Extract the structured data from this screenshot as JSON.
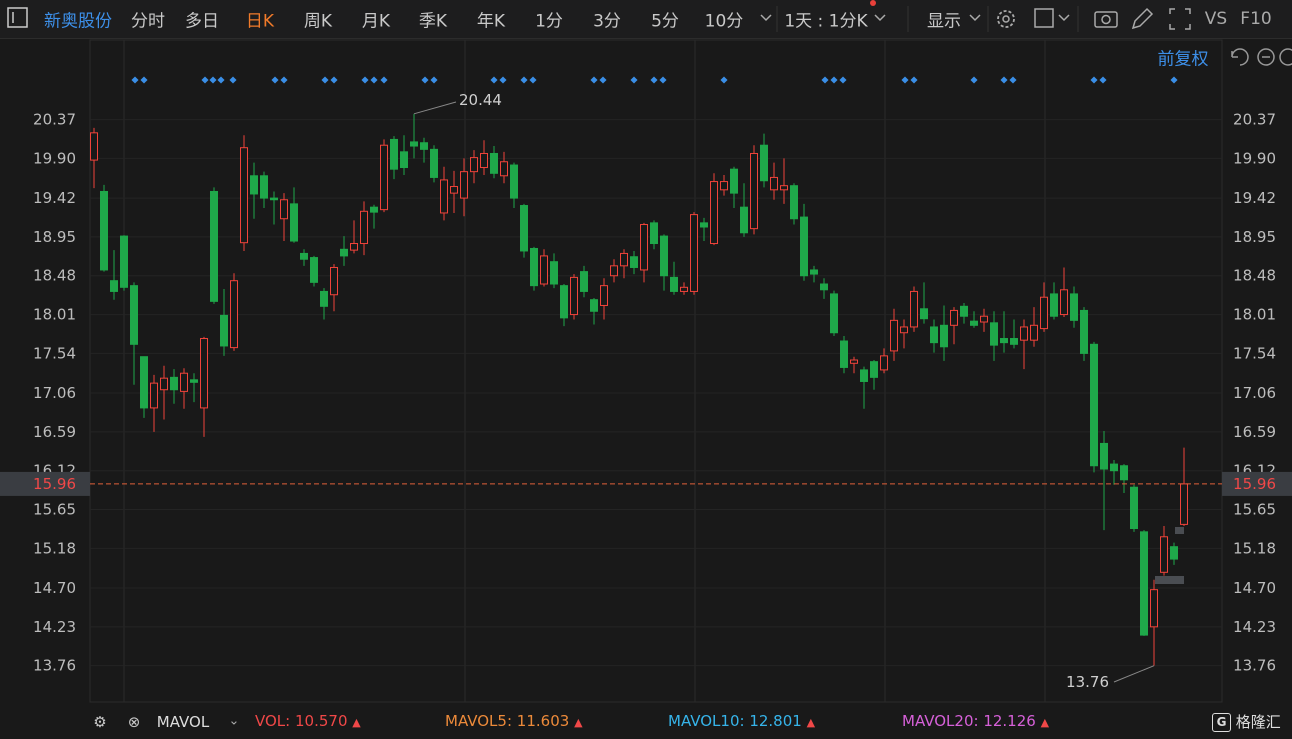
{
  "toolbar": {
    "stock": "新奥股份",
    "periods": [
      "分时",
      "多日",
      "日K",
      "周K",
      "月K",
      "季K",
      "年K",
      "1分",
      "3分",
      "5分",
      "10分"
    ],
    "multi_period": "1天 : 1分K",
    "display": "显示",
    "vs": "VS",
    "f10": "F10"
  },
  "chart_data": {
    "type": "candlestick",
    "adjust_mode": "前复权",
    "up_color": "#f0433a",
    "down_color": "#1fa84a",
    "grid": true,
    "ylim": [
      13.32,
      20.91
    ],
    "yticks": [
      20.37,
      {
        "value": 19.9,
        "label": "19.90"
      },
      19.42,
      18.95,
      18.48,
      18.01,
      17.54,
      17.06,
      16.59,
      16.12,
      15.65,
      15.18,
      {
        "value": 14.7,
        "label": "14.70"
      },
      14.23,
      13.76
    ],
    "current_price": 15.96,
    "max_label": 20.44,
    "min_label": 13.76,
    "open": [
      19.88,
      19.5,
      18.42,
      18.96,
      18.36,
      17.5,
      16.88,
      17.1,
      17.25,
      17.08,
      17.22,
      16.88,
      19.5,
      18.0,
      17.61,
      18.88,
      19.69,
      19.69,
      19.42,
      19.17,
      19.35,
      18.75,
      18.7,
      18.29,
      18.25,
      18.8,
      18.79,
      18.87,
      19.31,
      19.28,
      20.13,
      19.98,
      20.1,
      20.09,
      20.01,
      19.24,
      19.48,
      19.42,
      19.74,
      19.79,
      19.96,
      19.69,
      19.82,
      19.33,
      18.81,
      18.38,
      18.65,
      18.36,
      18.01,
      18.53,
      18.19,
      18.12,
      18.48,
      18.6,
      18.71,
      18.55,
      19.12,
      18.96,
      18.46,
      18.29,
      18.29,
      19.12,
      18.87,
      19.52,
      19.77,
      19.31,
      19.05,
      20.06,
      19.52,
      19.52,
      19.57,
      19.19,
      18.55,
      18.38,
      18.26,
      17.69,
      17.42,
      17.34,
      17.44,
      17.34,
      17.57,
      17.79,
      17.86,
      18.08,
      17.86,
      17.88,
      17.88,
      18.11,
      17.93,
      17.92,
      17.91,
      17.72,
      17.72,
      17.7,
      17.7,
      17.84,
      18.26,
      18.01,
      18.26,
      18.06,
      17.65,
      16.45,
      16.2,
      16.18,
      15.92,
      15.38,
      14.23,
      14.89,
      15.2,
      15.47
    ],
    "high": [
      20.27,
      19.58,
      18.79,
      18.97,
      18.4,
      17.5,
      17.28,
      17.39,
      17.35,
      17.36,
      17.3,
      17.74,
      19.55,
      18.32,
      18.51,
      20.18,
      19.85,
      19.74,
      19.5,
      19.48,
      19.55,
      18.8,
      18.72,
      18.33,
      18.62,
      18.96,
      19.15,
      19.38,
      19.34,
      20.13,
      20.17,
      20.18,
      20.44,
      20.15,
      20.06,
      19.8,
      19.75,
      19.9,
      20.0,
      20.12,
      20.05,
      19.98,
      19.85,
      19.35,
      18.83,
      18.8,
      18.75,
      18.38,
      18.5,
      18.6,
      18.21,
      18.45,
      18.68,
      18.8,
      18.78,
      19.12,
      19.15,
      18.98,
      18.65,
      18.4,
      19.25,
      19.18,
      19.72,
      19.7,
      19.8,
      19.6,
      20.06,
      20.2,
      19.85,
      19.9,
      19.6,
      19.35,
      18.6,
      18.45,
      18.3,
      17.75,
      17.5,
      17.38,
      17.46,
      17.6,
      18.08,
      17.95,
      18.35,
      18.4,
      17.95,
      18.12,
      18.1,
      18.15,
      18.05,
      18.08,
      18.05,
      18.05,
      17.95,
      17.95,
      18.1,
      18.4,
      18.4,
      18.58,
      18.35,
      18.1,
      17.68,
      16.6,
      16.25,
      16.2,
      15.95,
      15.4,
      14.8,
      15.45,
      15.25,
      16.4
    ],
    "low": [
      19.54,
      18.53,
      18.19,
      18.3,
      17.16,
      16.76,
      16.59,
      16.74,
      16.93,
      16.87,
      16.95,
      16.53,
      18.14,
      17.51,
      17.57,
      18.78,
      19.17,
      19.3,
      19.1,
      18.9,
      18.88,
      18.6,
      18.35,
      17.95,
      18.05,
      18.6,
      18.75,
      18.73,
      19.05,
      19.25,
      19.65,
      19.7,
      19.9,
      19.85,
      19.61,
      19.15,
      19.24,
      19.2,
      19.6,
      19.7,
      19.66,
      19.6,
      19.3,
      18.7,
      18.3,
      18.35,
      18.33,
      17.87,
      17.95,
      18.22,
      17.89,
      17.95,
      18.4,
      18.45,
      18.5,
      18.4,
      18.8,
      18.3,
      18.25,
      18.25,
      18.25,
      18.9,
      18.85,
      19.45,
      19.3,
      18.95,
      18.98,
      19.55,
      19.4,
      19.35,
      19.1,
      18.42,
      18.4,
      18.2,
      17.75,
      17.3,
      17.3,
      16.87,
      17.1,
      17.3,
      17.45,
      17.6,
      17.8,
      17.9,
      17.55,
      17.45,
      17.65,
      17.9,
      17.85,
      17.8,
      17.45,
      17.55,
      17.6,
      17.35,
      17.62,
      17.8,
      17.95,
      17.98,
      17.85,
      17.45,
      16.1,
      15.4,
      15.95,
      15.85,
      15.38,
      14.12,
      13.76,
      14.85,
      14.98,
      15.45
    ],
    "close": [
      20.21,
      18.55,
      18.29,
      18.34,
      17.65,
      16.88,
      17.18,
      17.24,
      17.1,
      17.3,
      17.19,
      17.72,
      18.17,
      17.63,
      18.42,
      20.03,
      19.47,
      19.42,
      19.4,
      19.4,
      18.9,
      18.68,
      18.4,
      18.11,
      18.58,
      18.72,
      18.87,
      19.26,
      19.25,
      20.06,
      19.77,
      19.79,
      20.05,
      20.01,
      19.67,
      19.64,
      19.56,
      19.74,
      19.91,
      19.96,
      19.72,
      19.86,
      19.42,
      18.78,
      18.36,
      18.72,
      18.38,
      17.97,
      18.46,
      18.29,
      18.05,
      18.36,
      18.6,
      18.75,
      18.58,
      19.1,
      18.87,
      18.48,
      18.29,
      18.34,
      19.22,
      19.07,
      19.62,
      19.62,
      19.48,
      19.0,
      19.96,
      19.63,
      19.67,
      19.57,
      19.17,
      18.48,
      18.5,
      18.31,
      17.79,
      17.37,
      17.46,
      17.2,
      17.25,
      17.51,
      17.94,
      17.86,
      18.29,
      17.96,
      17.67,
      17.62,
      18.06,
      17.99,
      17.88,
      17.99,
      17.64,
      17.67,
      17.65,
      17.86,
      17.88,
      18.22,
      17.99,
      18.31,
      17.94,
      17.54,
      16.18,
      16.14,
      16.12,
      16.01,
      15.42,
      14.13,
      14.68,
      15.32,
      15.05,
      15.96
    ]
  },
  "indicator_bar": {
    "indicator": "MAVOL",
    "items": [
      {
        "label": "VOL:",
        "value": "10.570"
      },
      {
        "label": "MAVOL5:",
        "value": "11.603"
      },
      {
        "label": "MAVOL10:",
        "value": "12.801"
      },
      {
        "label": "MAVOL20:",
        "value": "12.126"
      }
    ],
    "logo": "格隆汇"
  }
}
